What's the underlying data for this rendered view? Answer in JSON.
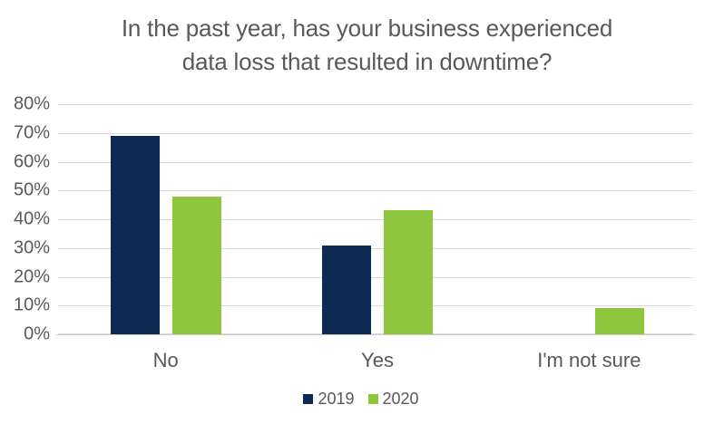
{
  "page": {
    "background_color": "#ffffff"
  },
  "chart_data": {
    "type": "bar",
    "title": "In the past year, has your business experienced data loss that resulted in downtime?",
    "title_lines": [
      "In the past year, has your business experienced",
      "data loss that resulted in downtime?"
    ],
    "categories": [
      "No",
      "Yes",
      "I'm not sure"
    ],
    "series": [
      {
        "name": "2019",
        "color": "#0d2a52",
        "values": [
          69,
          31,
          0
        ]
      },
      {
        "name": "2020",
        "color": "#8ec63e",
        "values": [
          48,
          43,
          9
        ]
      }
    ],
    "xlabel": "",
    "ylabel": "",
    "ylim": [
      0,
      80
    ],
    "y_tick_step": 10,
    "y_tick_labels": [
      "0%",
      "10%",
      "20%",
      "30%",
      "40%",
      "50%",
      "60%",
      "70%",
      "80%"
    ],
    "grid": true,
    "legend_position": "bottom",
    "colors": {
      "title_text": "#595959",
      "axis_text": "#595959",
      "gridline": "#d9d9d9",
      "axis_line": "#cfcccc",
      "series_2019": "#0d2a52",
      "series_2020": "#8ec63e"
    }
  }
}
